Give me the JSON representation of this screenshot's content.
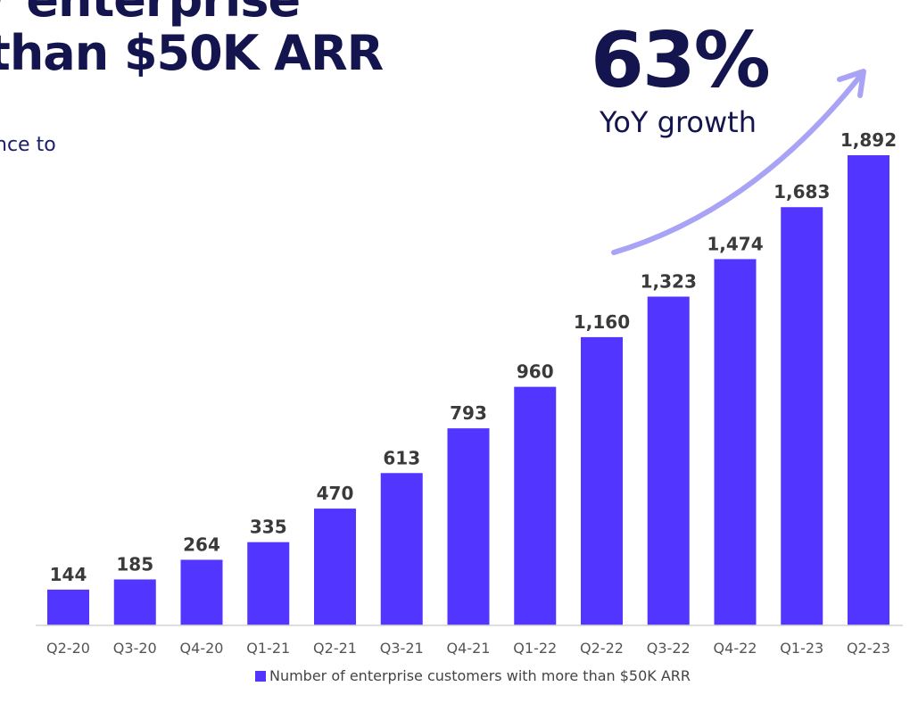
{
  "heading": {
    "line1": "r enterprise",
    "line2": "than $50K ARR",
    "subtitle": "nce to"
  },
  "callout": {
    "value": "63%",
    "label": "YoY growth"
  },
  "colors": {
    "bar": "#5236ff",
    "arrow": "#a9a3f5",
    "title": "#14154f",
    "label": "#3a3a3a"
  },
  "chart_data": {
    "type": "bar",
    "title": "",
    "xlabel": "",
    "ylabel": "",
    "ylim": [
      0,
      1892
    ],
    "categories": [
      "Q2-20",
      "Q3-20",
      "Q4-20",
      "Q1-21",
      "Q2-21",
      "Q3-21",
      "Q4-21",
      "Q1-22",
      "Q2-22",
      "Q3-22",
      "Q4-22",
      "Q1-23",
      "Q2-23"
    ],
    "series": [
      {
        "name": "Number of enterprise customers with more than $50K ARR",
        "values": [
          144,
          185,
          264,
          335,
          470,
          613,
          793,
          960,
          1160,
          1323,
          1474,
          1683,
          1892
        ],
        "labels": [
          "144",
          "185",
          "264",
          "335",
          "470",
          "613",
          "793",
          "960",
          "1,160",
          "1,323",
          "1,474",
          "1,683",
          "1,892"
        ]
      }
    ],
    "legend": "bottom-center",
    "grid": false
  }
}
